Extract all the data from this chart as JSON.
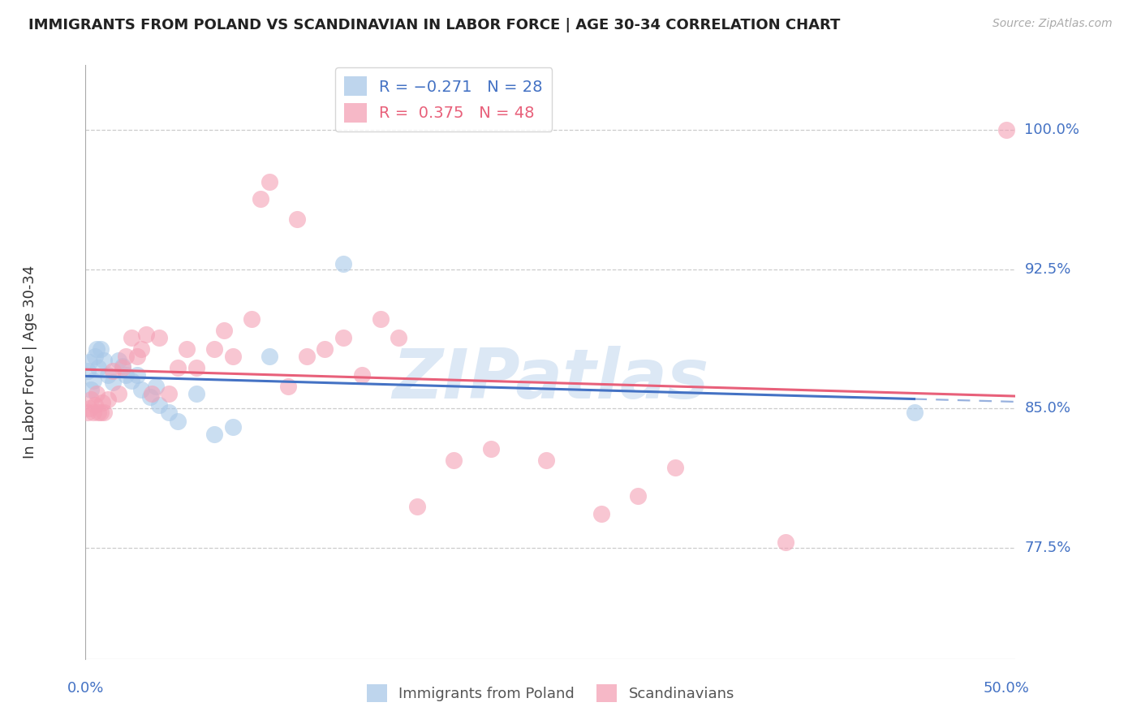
{
  "title": "IMMIGRANTS FROM POLAND VS SCANDINAVIAN IN LABOR FORCE | AGE 30-34 CORRELATION CHART",
  "source": "Source: ZipAtlas.com",
  "ylabel": "In Labor Force | Age 30-34",
  "ytick_labels": [
    "100.0%",
    "92.5%",
    "85.0%",
    "77.5%"
  ],
  "ytick_values": [
    1.0,
    0.925,
    0.85,
    0.775
  ],
  "ylim": [
    0.715,
    1.035
  ],
  "xlim": [
    0.0,
    0.505
  ],
  "blue_r": "-0.271",
  "blue_n": "28",
  "pink_r": "0.375",
  "pink_n": "48",
  "blue_fill": "#a8c8e8",
  "pink_fill": "#f4a0b5",
  "blue_line": "#4472c4",
  "pink_line": "#e8607a",
  "axis_color": "#4472c4",
  "grid_color": "#cccccc",
  "bg_color": "#ffffff",
  "watermark": "ZIPatlas",
  "watermark_color": "#dce8f5",
  "poland_x": [
    0.001,
    0.002,
    0.003,
    0.004,
    0.005,
    0.006,
    0.007,
    0.008,
    0.01,
    0.012,
    0.015,
    0.018,
    0.02,
    0.022,
    0.025,
    0.028,
    0.03,
    0.035,
    0.038,
    0.04,
    0.045,
    0.05,
    0.06,
    0.07,
    0.08,
    0.1,
    0.14,
    0.45
  ],
  "poland_y": [
    0.87,
    0.875,
    0.86,
    0.865,
    0.878,
    0.882,
    0.872,
    0.882,
    0.876,
    0.868,
    0.864,
    0.876,
    0.873,
    0.868,
    0.865,
    0.868,
    0.86,
    0.856,
    0.862,
    0.852,
    0.848,
    0.843,
    0.858,
    0.836,
    0.84,
    0.878,
    0.928,
    0.848
  ],
  "scandi_x": [
    0.001,
    0.002,
    0.003,
    0.004,
    0.005,
    0.006,
    0.007,
    0.008,
    0.009,
    0.01,
    0.012,
    0.015,
    0.018,
    0.02,
    0.022,
    0.025,
    0.028,
    0.03,
    0.033,
    0.036,
    0.04,
    0.045,
    0.05,
    0.055,
    0.06,
    0.07,
    0.075,
    0.08,
    0.09,
    0.095,
    0.1,
    0.11,
    0.115,
    0.12,
    0.13,
    0.14,
    0.15,
    0.16,
    0.17,
    0.18,
    0.2,
    0.22,
    0.25,
    0.28,
    0.3,
    0.32,
    0.38,
    0.5
  ],
  "scandi_y": [
    0.848,
    0.85,
    0.855,
    0.848,
    0.852,
    0.858,
    0.848,
    0.848,
    0.853,
    0.848,
    0.855,
    0.87,
    0.858,
    0.872,
    0.878,
    0.888,
    0.878,
    0.882,
    0.89,
    0.858,
    0.888,
    0.858,
    0.872,
    0.882,
    0.872,
    0.882,
    0.892,
    0.878,
    0.898,
    0.963,
    0.972,
    0.862,
    0.952,
    0.878,
    0.882,
    0.888,
    0.868,
    0.898,
    0.888,
    0.797,
    0.822,
    0.828,
    0.822,
    0.793,
    0.803,
    0.818,
    0.778,
    1.0
  ]
}
